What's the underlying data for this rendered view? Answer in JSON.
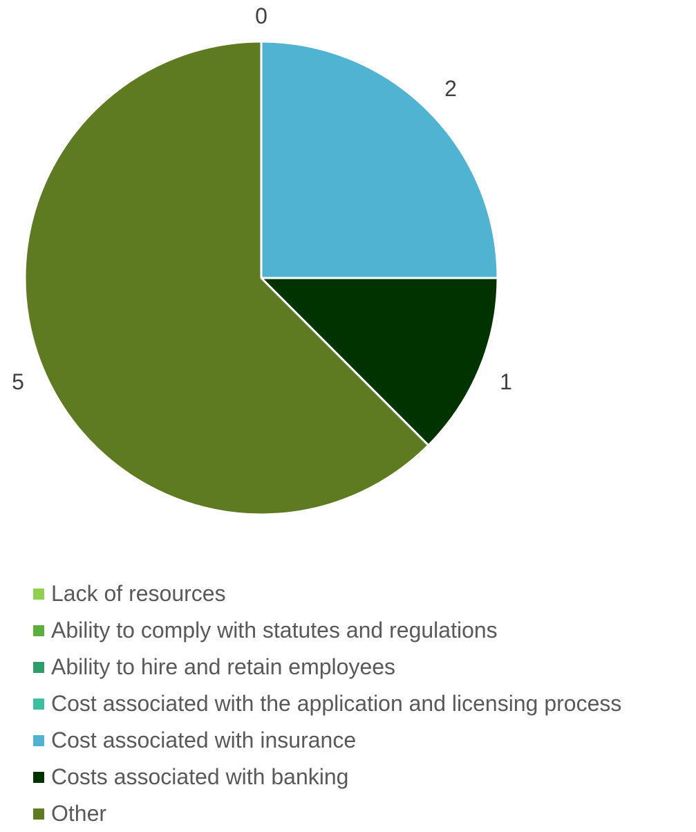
{
  "chart_data": {
    "type": "pie",
    "start_angle_deg": 0,
    "direction": "clockwise",
    "slices": [
      {
        "label": "Lack of resources",
        "value": 0,
        "color": "#92D050"
      },
      {
        "label": "Ability to comply with statutes and regulations",
        "value": 0,
        "color": "#5BAF3C"
      },
      {
        "label": "Ability to hire and retain employees",
        "value": 0,
        "color": "#2E9E6C"
      },
      {
        "label": "Cost associated with the application and licensing process",
        "value": 0,
        "color": "#3DBF9F"
      },
      {
        "label": "Cost associated with insurance",
        "value": 2,
        "color": "#4FB3D1"
      },
      {
        "label": "Costs associated with banking",
        "value": 1,
        "color": "#003300"
      },
      {
        "label": "Other",
        "value": 5,
        "color": "#5E7B22"
      }
    ],
    "data_labels": [
      "0",
      "2",
      "1",
      "5"
    ],
    "legend_position": "bottom"
  }
}
